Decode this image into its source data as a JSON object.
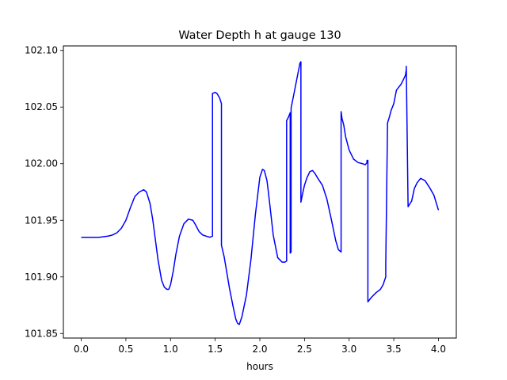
{
  "chart_data": {
    "type": "line",
    "title": "Water Depth h at gauge 130",
    "xlabel": "hours",
    "ylabel": "",
    "xlim": [
      -0.2,
      4.2
    ],
    "ylim": [
      101.846,
      102.104
    ],
    "xticks": [
      0.0,
      0.5,
      1.0,
      1.5,
      2.0,
      2.5,
      3.0,
      3.5,
      4.0
    ],
    "xtick_labels": [
      "0.0",
      "0.5",
      "1.0",
      "1.5",
      "2.0",
      "2.5",
      "3.0",
      "3.5",
      "4.0"
    ],
    "yticks": [
      101.85,
      101.9,
      101.95,
      102.0,
      102.05,
      102.1
    ],
    "ytick_labels": [
      "101.85",
      "101.90",
      "101.95",
      "102.00",
      "102.05",
      "102.10"
    ],
    "grid": false,
    "series": [
      {
        "color": "#0000ff",
        "x": [
          0.0,
          0.1,
          0.2,
          0.3,
          0.35,
          0.4,
          0.45,
          0.5,
          0.55,
          0.6,
          0.65,
          0.7,
          0.73,
          0.77,
          0.8,
          0.83,
          0.86,
          0.9,
          0.93,
          0.96,
          0.98,
          1.0,
          1.03,
          1.06,
          1.1,
          1.15,
          1.2,
          1.25,
          1.28,
          1.32,
          1.36,
          1.4,
          1.44,
          1.47,
          1.47,
          1.5,
          1.52,
          1.55,
          1.57,
          1.57,
          1.6,
          1.63,
          1.66,
          1.7,
          1.73,
          1.75,
          1.77,
          1.8,
          1.85,
          1.9,
          1.95,
          2.0,
          2.03,
          2.05,
          2.08,
          2.1,
          2.15,
          2.2,
          2.25,
          2.28,
          2.3,
          2.3,
          2.32,
          2.34,
          2.34,
          2.35,
          2.35,
          2.36,
          2.38,
          2.4,
          2.43,
          2.45,
          2.46,
          2.46,
          2.48,
          2.5,
          2.53,
          2.56,
          2.59,
          2.62,
          2.65,
          2.7,
          2.75,
          2.8,
          2.85,
          2.88,
          2.91,
          2.91,
          2.92,
          2.94,
          2.96,
          3.0,
          3.05,
          3.1,
          3.15,
          3.18,
          3.2,
          3.2,
          3.21,
          3.21,
          3.25,
          3.3,
          3.35,
          3.38,
          3.41,
          3.41,
          3.43,
          3.45,
          3.47,
          3.5,
          3.53,
          3.55,
          3.58,
          3.6,
          3.63,
          3.64,
          3.64,
          3.66,
          3.7,
          3.73,
          3.76,
          3.8,
          3.85,
          3.9,
          3.95,
          4.0
        ],
        "y": [
          101.935,
          101.935,
          101.935,
          101.936,
          101.937,
          101.939,
          101.943,
          101.95,
          101.961,
          101.971,
          101.975,
          101.977,
          101.975,
          101.965,
          101.951,
          101.933,
          101.915,
          101.897,
          101.891,
          101.889,
          101.889,
          101.893,
          101.905,
          101.92,
          101.936,
          101.947,
          101.951,
          101.95,
          101.946,
          101.94,
          101.937,
          101.936,
          101.935,
          101.936,
          102.062,
          102.063,
          102.062,
          102.058,
          102.053,
          101.928,
          101.918,
          101.904,
          101.89,
          101.874,
          101.863,
          101.859,
          101.858,
          101.865,
          101.884,
          101.915,
          101.955,
          101.988,
          101.995,
          101.994,
          101.985,
          101.972,
          101.937,
          101.917,
          101.913,
          101.913,
          101.914,
          102.038,
          102.041,
          102.045,
          101.921,
          101.922,
          102.049,
          102.053,
          102.061,
          102.069,
          102.081,
          102.089,
          102.09,
          101.966,
          101.974,
          101.981,
          101.988,
          101.993,
          101.994,
          101.991,
          101.987,
          101.981,
          101.969,
          101.951,
          101.932,
          101.924,
          101.922,
          102.046,
          102.04,
          102.034,
          102.024,
          102.012,
          102.004,
          102.001,
          102.0,
          101.999,
          102.001,
          102.003,
          102.003,
          101.878,
          101.882,
          101.886,
          101.889,
          101.893,
          101.9,
          101.911,
          102.036,
          102.041,
          102.047,
          102.053,
          102.065,
          102.067,
          102.07,
          102.073,
          102.078,
          102.083,
          102.086,
          101.962,
          101.967,
          101.978,
          101.983,
          101.987,
          101.985,
          101.979,
          101.972,
          101.959
        ]
      }
    ]
  }
}
